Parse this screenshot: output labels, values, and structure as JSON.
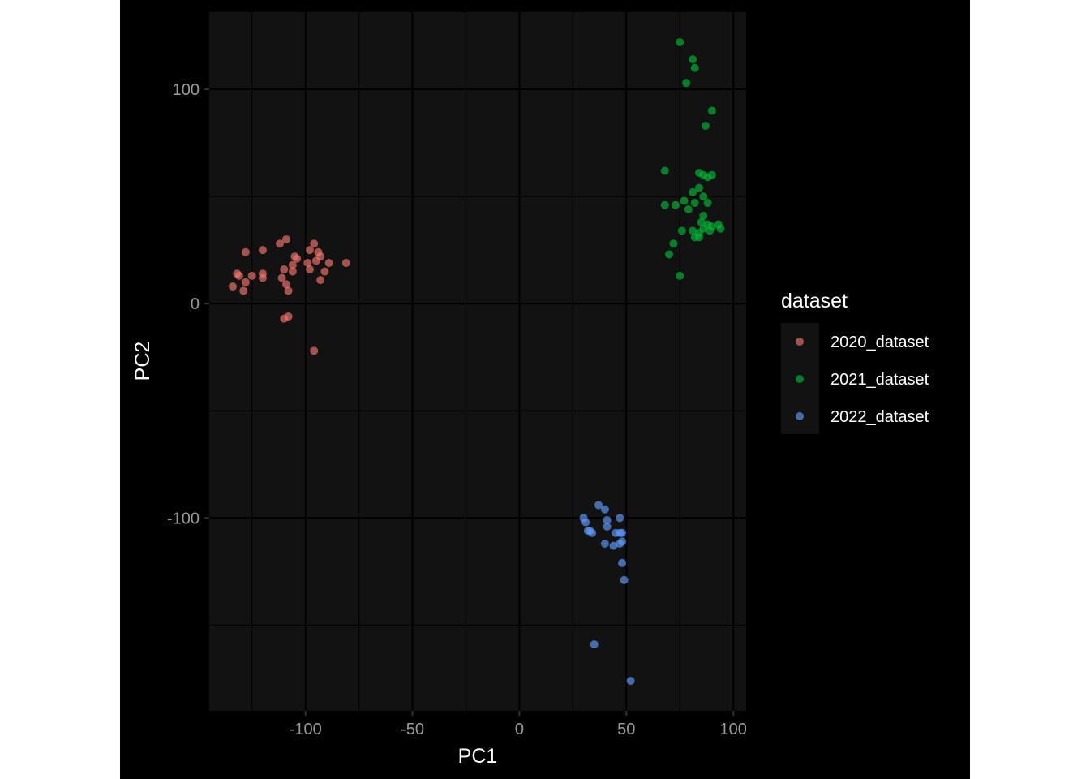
{
  "chart_data": {
    "type": "scatter",
    "xlabel": "PC1",
    "ylabel": "PC2",
    "xlim": [
      -145,
      106
    ],
    "ylim": [
      -190,
      136
    ],
    "xticks": [
      -100,
      -50,
      0,
      50,
      100
    ],
    "xtick_labels": [
      "-100",
      "-50",
      "0",
      "50",
      "100"
    ],
    "yticks": [
      -100,
      0,
      100
    ],
    "ytick_labels": [
      "-100",
      "0",
      "100"
    ],
    "grid": true,
    "theme": "dark",
    "legend": {
      "title": "dataset",
      "position": "right"
    },
    "series": [
      {
        "name": "2020_dataset",
        "color": "#F8766D",
        "points": [
          [
            -132,
            14
          ],
          [
            -134,
            8
          ],
          [
            -131,
            13
          ],
          [
            -129,
            6
          ],
          [
            -128,
            10
          ],
          [
            -128,
            24
          ],
          [
            -125,
            13
          ],
          [
            -120,
            25
          ],
          [
            -120,
            14
          ],
          [
            -120,
            12
          ],
          [
            -112,
            28
          ],
          [
            -109,
            30
          ],
          [
            -111,
            12
          ],
          [
            -110,
            16
          ],
          [
            -109,
            9
          ],
          [
            -108,
            6
          ],
          [
            -106,
            18
          ],
          [
            -106,
            15
          ],
          [
            -105,
            22
          ],
          [
            -104,
            21
          ],
          [
            -99,
            19
          ],
          [
            -98,
            16
          ],
          [
            -98,
            25
          ],
          [
            -96,
            28
          ],
          [
            -95,
            20
          ],
          [
            -94,
            24
          ],
          [
            -93,
            22
          ],
          [
            -93,
            11
          ],
          [
            -91,
            15
          ],
          [
            -89,
            19
          ],
          [
            -81,
            19
          ],
          [
            -110,
            -7
          ],
          [
            -108,
            -6
          ],
          [
            -96,
            -22
          ]
        ]
      },
      {
        "name": "2021_dataset",
        "color": "#00BA38",
        "points": [
          [
            75,
            122
          ],
          [
            81,
            114
          ],
          [
            82,
            110
          ],
          [
            78,
            103
          ],
          [
            90,
            90
          ],
          [
            87,
            83
          ],
          [
            68,
            62
          ],
          [
            84,
            61
          ],
          [
            86,
            60
          ],
          [
            88,
            59
          ],
          [
            90,
            60
          ],
          [
            84,
            54
          ],
          [
            81,
            52
          ],
          [
            86,
            50
          ],
          [
            77,
            48
          ],
          [
            82,
            47
          ],
          [
            88,
            47
          ],
          [
            68,
            46
          ],
          [
            73,
            46
          ],
          [
            79,
            44
          ],
          [
            86,
            41
          ],
          [
            85,
            38
          ],
          [
            88,
            37
          ],
          [
            90,
            36
          ],
          [
            93,
            37
          ],
          [
            76,
            34
          ],
          [
            81,
            34
          ],
          [
            84,
            33
          ],
          [
            86,
            35
          ],
          [
            89,
            34
          ],
          [
            94,
            35
          ],
          [
            82,
            31
          ],
          [
            84,
            31
          ],
          [
            72,
            28
          ],
          [
            70,
            23
          ],
          [
            75,
            13
          ]
        ]
      },
      {
        "name": "2022_dataset",
        "color": "#619CFF",
        "points": [
          [
            37,
            -94
          ],
          [
            40,
            -96
          ],
          [
            30,
            -100
          ],
          [
            31,
            -102
          ],
          [
            41,
            -101
          ],
          [
            47,
            -100
          ],
          [
            33,
            -106
          ],
          [
            32,
            -106
          ],
          [
            34,
            -107
          ],
          [
            41,
            -104
          ],
          [
            45,
            -107
          ],
          [
            47,
            -107
          ],
          [
            48,
            -107
          ],
          [
            40,
            -112
          ],
          [
            44,
            -113
          ],
          [
            47,
            -112
          ],
          [
            48,
            -111
          ],
          [
            48,
            -121
          ],
          [
            49,
            -129
          ],
          [
            35,
            -159
          ],
          [
            52,
            -176
          ]
        ]
      }
    ]
  }
}
